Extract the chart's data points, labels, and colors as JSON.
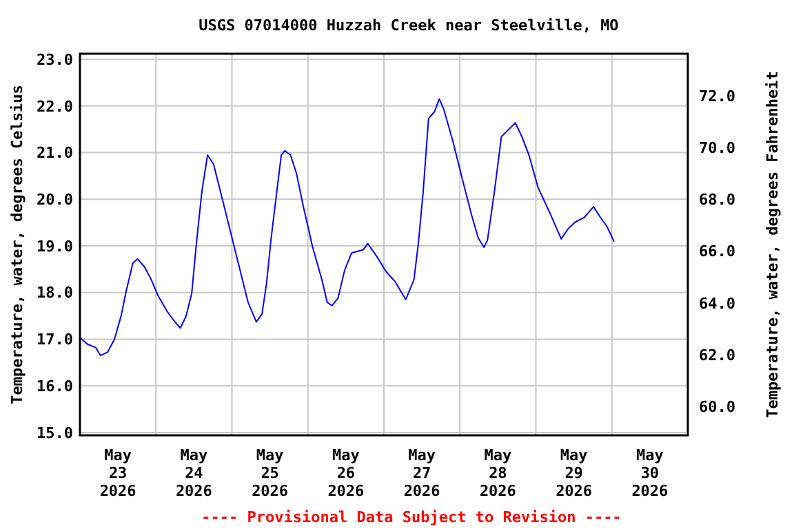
{
  "chart_data": {
    "type": "line",
    "title": "USGS 07014000 Huzzah Creek near Steelville, MO",
    "ylabel": "Temperature, water, degrees Celsius",
    "y2label": "Temperature, water, degrees Fahrenheit",
    "annotations": [
      "---- Provisional Data Subject to Revision ----"
    ],
    "xlim": [
      "2026-05-23T00:00",
      "2026-05-31T00:00"
    ],
    "xticks": [
      {
        "value": "2026-05-23T00:00",
        "label": null
      },
      {
        "value": "2026-05-24T00:00",
        "label": null
      },
      {
        "value": "2026-05-25T00:00",
        "label": null
      },
      {
        "value": "2026-05-26T00:00",
        "label": null
      },
      {
        "value": "2026-05-27T00:00",
        "label": null
      },
      {
        "value": "2026-05-28T00:00",
        "label": null
      },
      {
        "value": "2026-05-29T00:00",
        "label": null
      },
      {
        "value": "2026-05-30T00:00",
        "label": null
      },
      {
        "value": "2026-05-31T00:00",
        "label": null
      },
      {
        "value": "2026-05-23T12:00",
        "label": "May\n23\n2026"
      },
      {
        "value": "2026-05-24T12:00",
        "label": "May\n24\n2026"
      },
      {
        "value": "2026-05-25T12:00",
        "label": "May\n25\n2026"
      },
      {
        "value": "2026-05-26T12:00",
        "label": "May\n26\n2026"
      },
      {
        "value": "2026-05-27T12:00",
        "label": "May\n27\n2026"
      },
      {
        "value": "2026-05-28T12:00",
        "label": "May\n28\n2026"
      },
      {
        "value": "2026-05-29T12:00",
        "label": "May\n29\n2026"
      },
      {
        "value": "2026-05-30T12:00",
        "label": "May\n30\n2026"
      }
    ],
    "ylim": [
      14.94,
      23.12
    ],
    "yticks": [
      {
        "value": 15,
        "label": "15.0"
      },
      {
        "value": 16,
        "label": "16.0"
      },
      {
        "value": 17,
        "label": "17.0"
      },
      {
        "value": 18,
        "label": "18.0"
      },
      {
        "value": 19,
        "label": "19.0"
      },
      {
        "value": 20,
        "label": "20.0"
      },
      {
        "value": 21,
        "label": "21.0"
      },
      {
        "value": 22,
        "label": "22.0"
      },
      {
        "value": 23,
        "label": "23.0"
      }
    ],
    "y2lim": [
      58.89,
      73.62
    ],
    "y2ticks": [
      {
        "value": 60,
        "label": "60.0"
      },
      {
        "value": 62,
        "label": "62.0"
      },
      {
        "value": 64,
        "label": "64.0"
      },
      {
        "value": 66,
        "label": "66.0"
      },
      {
        "value": 68,
        "label": "68.0"
      },
      {
        "value": 70,
        "label": "70.0"
      },
      {
        "value": 72,
        "label": "72.0"
      }
    ],
    "grid": true,
    "marker": "none",
    "line_style": "solid",
    "series": [
      {
        "color": "#0000ff",
        "x": [
          "2026-05-23T00:00",
          "2026-05-23T02:12",
          "2026-05-23T05:00",
          "2026-05-23T06:30",
          "2026-05-23T08:42",
          "2026-05-23T10:54",
          "2026-05-23T13:00",
          "2026-05-23T14:30",
          "2026-05-23T16:42",
          "2026-05-23T18:12",
          "2026-05-23T20:24",
          "2026-05-23T22:30",
          "2026-05-24T00:42",
          "2026-05-24T03:36",
          "2026-05-24T05:48",
          "2026-05-24T07:42",
          "2026-05-24T09:30",
          "2026-05-24T11:18",
          "2026-05-24T12:48",
          "2026-05-24T14:30",
          "2026-05-24T16:18",
          "2026-05-24T18:12",
          "2026-05-24T20:24",
          "2026-05-24T23:18",
          "2026-05-25T02:12",
          "2026-05-25T05:06",
          "2026-05-25T07:42",
          "2026-05-25T09:30",
          "2026-05-25T10:54",
          "2026-05-25T12:24",
          "2026-05-25T13:48",
          "2026-05-25T15:36",
          "2026-05-25T16:42",
          "2026-05-25T18:30",
          "2026-05-25T20:24",
          "2026-05-25T22:30",
          "2026-05-26T01:30",
          "2026-05-26T04:24",
          "2026-05-26T06:06",
          "2026-05-26T07:36",
          "2026-05-26T09:30",
          "2026-05-26T11:36",
          "2026-05-26T13:48",
          "2026-05-26T17:30",
          "2026-05-26T18:54",
          "2026-05-26T21:48",
          "2026-05-27T00:42",
          "2026-05-27T03:36",
          "2026-05-27T06:54",
          "2026-05-27T09:30",
          "2026-05-27T10:54",
          "2026-05-27T12:24",
          "2026-05-27T14:06",
          "2026-05-27T16:00",
          "2026-05-27T17:30",
          "2026-05-27T18:54",
          "2026-05-27T21:48",
          "2026-05-28T00:42",
          "2026-05-28T03:42",
          "2026-05-28T05:48",
          "2026-05-28T07:36",
          "2026-05-28T08:42",
          "2026-05-28T10:54",
          "2026-05-28T13:06",
          "2026-05-28T15:18",
          "2026-05-28T17:30",
          "2026-05-28T19:36",
          "2026-05-28T21:48",
          "2026-05-29T00:42",
          "2026-05-29T04:24",
          "2026-05-29T08:00",
          "2026-05-29T10:12",
          "2026-05-29T12:24",
          "2026-05-29T15:18",
          "2026-05-29T18:12",
          "2026-05-29T20:24",
          "2026-05-29T22:30",
          "2026-05-30T00:42"
        ],
        "values": [
          17.04,
          16.9,
          16.82,
          16.65,
          16.72,
          17.0,
          17.5,
          18.0,
          18.63,
          18.72,
          18.55,
          18.28,
          17.93,
          17.59,
          17.39,
          17.24,
          17.49,
          17.98,
          19.07,
          20.16,
          20.95,
          20.75,
          20.16,
          19.37,
          18.58,
          17.79,
          17.37,
          17.54,
          18.18,
          19.17,
          19.96,
          20.95,
          21.04,
          20.95,
          20.55,
          19.86,
          18.97,
          18.28,
          17.79,
          17.72,
          17.88,
          18.48,
          18.85,
          18.92,
          19.05,
          18.77,
          18.45,
          18.23,
          17.85,
          18.28,
          19.07,
          20.16,
          21.73,
          21.88,
          22.15,
          21.93,
          21.24,
          20.45,
          19.66,
          19.17,
          18.97,
          19.12,
          20.16,
          21.34,
          21.49,
          21.64,
          21.34,
          20.95,
          20.25,
          19.71,
          19.15,
          19.37,
          19.51,
          19.61,
          19.84,
          19.61,
          19.41,
          19.09
        ]
      }
    ]
  }
}
